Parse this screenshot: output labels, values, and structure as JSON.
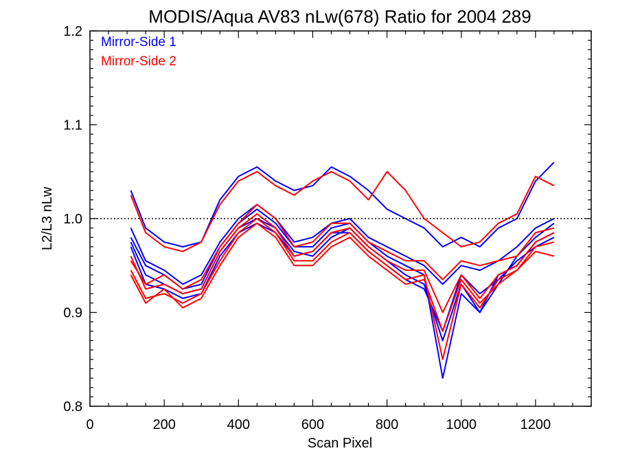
{
  "chart_data": {
    "type": "line",
    "title": "MODIS/Aqua AV83 nLw(678) Ratio for 2004 289",
    "xlabel": "Scan Pixel",
    "ylabel": "L2/L3 nLw",
    "xlim": [
      0,
      1350
    ],
    "ylim": [
      0.8,
      1.2
    ],
    "xticks": [
      0,
      200,
      400,
      600,
      800,
      1000,
      1200
    ],
    "xtick_labels": [
      "0",
      "200",
      "400",
      "600",
      "800",
      "1000",
      "1200"
    ],
    "yticks": [
      0.8,
      0.9,
      1.0,
      1.1,
      1.2
    ],
    "ytick_labels": [
      "0.8",
      "0.9",
      "1.0",
      "1.1",
      "1.2"
    ],
    "reference_line": {
      "y": 1.0,
      "style": "dotted"
    },
    "grid": false,
    "legend_position": "top-left",
    "colors": {
      "mirror_side_1": "#0000ff",
      "mirror_side_2": "#ff0000"
    },
    "x": [
      110,
      150,
      200,
      250,
      300,
      350,
      400,
      450,
      500,
      550,
      600,
      650,
      700,
      750,
      800,
      850,
      900,
      950,
      1000,
      1050,
      1100,
      1150,
      1200,
      1250
    ],
    "series": [
      {
        "name": "Mirror-Side 1",
        "values": [
          1.03,
          0.99,
          0.975,
          0.97,
          0.975,
          1.02,
          1.045,
          1.055,
          1.04,
          1.03,
          1.035,
          1.055,
          1.045,
          1.03,
          1.01,
          1.0,
          0.99,
          0.97,
          0.98,
          0.97,
          0.99,
          1.0,
          1.04,
          1.06
        ]
      },
      {
        "name": "Mirror-Side 1",
        "values": [
          0.99,
          0.955,
          0.945,
          0.93,
          0.94,
          0.975,
          1.0,
          1.015,
          1.0,
          0.975,
          0.98,
          0.995,
          1.0,
          0.98,
          0.97,
          0.96,
          0.95,
          0.93,
          0.95,
          0.945,
          0.955,
          0.97,
          0.99,
          1.0
        ]
      },
      {
        "name": "Mirror-Side 1",
        "values": [
          0.975,
          0.94,
          0.93,
          0.92,
          0.925,
          0.965,
          0.99,
          1.0,
          0.99,
          0.965,
          0.96,
          0.98,
          0.99,
          0.97,
          0.955,
          0.94,
          0.93,
          0.87,
          0.93,
          0.9,
          0.94,
          0.95,
          0.975,
          0.985
        ]
      },
      {
        "name": "Mirror-Side 1",
        "values": [
          0.98,
          0.95,
          0.94,
          0.925,
          0.93,
          0.97,
          0.995,
          1.01,
          0.995,
          0.97,
          0.97,
          0.99,
          0.995,
          0.975,
          0.96,
          0.95,
          0.94,
          0.83,
          0.92,
          0.9,
          0.93,
          0.96,
          0.98,
          0.995
        ]
      },
      {
        "name": "Mirror-Side 1",
        "values": [
          0.97,
          0.93,
          0.925,
          0.915,
          0.92,
          0.96,
          0.985,
          0.995,
          0.985,
          0.96,
          0.965,
          0.985,
          0.985,
          0.965,
          0.95,
          0.935,
          0.925,
          0.88,
          0.94,
          0.92,
          0.935,
          0.955,
          0.97,
          0.98
        ]
      },
      {
        "name": "Mirror-Side 2",
        "values": [
          1.025,
          0.985,
          0.97,
          0.965,
          0.975,
          1.015,
          1.04,
          1.05,
          1.035,
          1.025,
          1.04,
          1.05,
          1.04,
          1.02,
          1.05,
          1.03,
          1.0,
          0.985,
          0.97,
          0.975,
          0.995,
          1.005,
          1.045,
          1.035
        ]
      },
      {
        "name": "Mirror-Side 2",
        "values": [
          0.955,
          0.93,
          0.94,
          0.925,
          0.935,
          0.97,
          0.995,
          1.015,
          1.0,
          0.97,
          0.975,
          0.995,
          0.995,
          0.975,
          0.965,
          0.955,
          0.955,
          0.935,
          0.955,
          0.95,
          0.955,
          0.96,
          0.985,
          0.99
        ]
      },
      {
        "name": "Mirror-Side 2",
        "values": [
          0.945,
          0.915,
          0.92,
          0.91,
          0.92,
          0.955,
          0.985,
          1.0,
          0.985,
          0.955,
          0.955,
          0.975,
          0.985,
          0.965,
          0.95,
          0.935,
          0.94,
          0.85,
          0.93,
          0.905,
          0.935,
          0.945,
          0.97,
          0.975
        ]
      },
      {
        "name": "Mirror-Side 2",
        "values": [
          0.96,
          0.925,
          0.93,
          0.92,
          0.925,
          0.965,
          0.99,
          1.005,
          0.99,
          0.96,
          0.965,
          0.985,
          0.99,
          0.97,
          0.955,
          0.945,
          0.945,
          0.9,
          0.94,
          0.915,
          0.94,
          0.95,
          0.975,
          0.985
        ]
      },
      {
        "name": "Mirror-Side 2",
        "values": [
          0.94,
          0.91,
          0.925,
          0.905,
          0.915,
          0.95,
          0.98,
          0.995,
          0.98,
          0.95,
          0.95,
          0.97,
          0.98,
          0.96,
          0.945,
          0.93,
          0.935,
          0.88,
          0.935,
          0.91,
          0.93,
          0.945,
          0.965,
          0.96
        ]
      }
    ],
    "legend": [
      {
        "label": "Mirror-Side 1",
        "color": "#0000ff"
      },
      {
        "label": "Mirror-Side 2",
        "color": "#ff0000"
      }
    ]
  }
}
